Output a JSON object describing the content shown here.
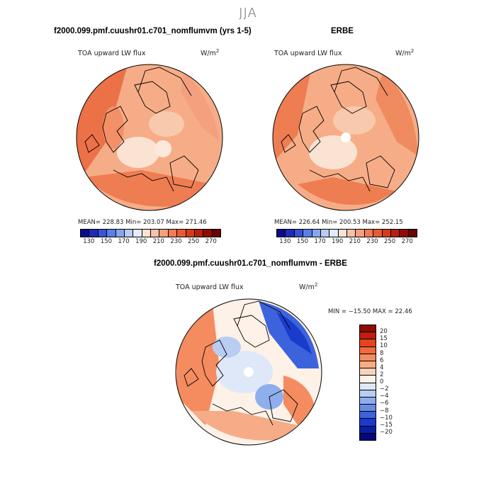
{
  "page": {
    "season": "JJA"
  },
  "panel_model": {
    "title": "f2000.099.pmf.cuushr01.c701_nomflumvm (yrs 1-5)",
    "variable": "TOA upward LW flux",
    "units_base": "W/m",
    "units_exp": "2",
    "stats": "MEAN= 228.83   Min= 203.07   Max= 271.46"
  },
  "panel_obs": {
    "title": "ERBE",
    "variable": "TOA upward LW flux",
    "units_base": "W/m",
    "units_exp": "2",
    "stats": "MEAN= 226.64   Min= 200.53   Max= 252.15"
  },
  "panel_diff": {
    "title": "f2000.099.pmf.cuushr01.c701_nomflumvm - ERBE",
    "variable": "TOA upward LW flux",
    "units_base": "W/m",
    "units_exp": "2",
    "stats": "MIN = −15.50 MAX =  22.46"
  },
  "colorbar_abs": {
    "tick_labels": [
      "130",
      "150",
      "170",
      "190",
      "210",
      "230",
      "250",
      "270"
    ],
    "colors": [
      "#0a0a8c",
      "#1e2bb4",
      "#3553d6",
      "#5a7fe8",
      "#86a6f0",
      "#b7ccf5",
      "#e3ecfb",
      "#fbe3d3",
      "#f7c2a8",
      "#f4a07e",
      "#f07c56",
      "#e85a36",
      "#d43b1c",
      "#b8200e",
      "#8f0c06",
      "#6a0303"
    ]
  },
  "colorbar_diff": {
    "tick_labels": [
      "20",
      "15",
      "10",
      "8",
      "6",
      "4",
      "2",
      "0",
      "−2",
      "−4",
      "−6",
      "−8",
      "−10",
      "−15",
      "−20"
    ],
    "colors": [
      "#8f0c06",
      "#c21e0c",
      "#e2451f",
      "#ef6a40",
      "#f48c60",
      "#f6ad87",
      "#f9d2bb",
      "#fdf1e8",
      "#dfe8f9",
      "#b9cdf3",
      "#8eaeee",
      "#6a8ce6",
      "#3d63dc",
      "#1a3ccc",
      "#0b1fa4",
      "#03087a"
    ]
  }
}
